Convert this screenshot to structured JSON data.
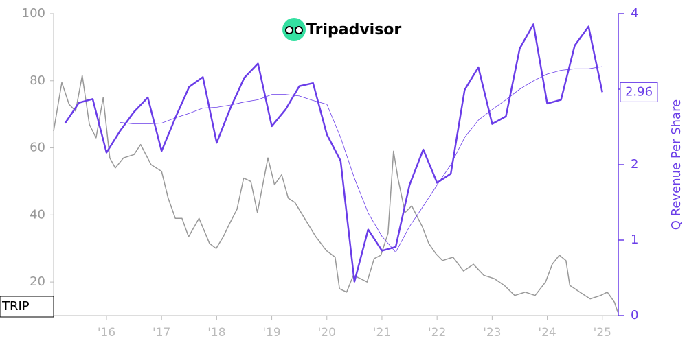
{
  "logo": "Tripadvisor",
  "chart_data": {
    "type": "line",
    "y2_label": "Q Revenue Per Share",
    "xlim": [
      2015.04,
      2025.29
    ],
    "xticks": [
      {
        "value": 2016,
        "label": "'16"
      },
      {
        "value": 2017,
        "label": "'17"
      },
      {
        "value": 2018,
        "label": "'18"
      },
      {
        "value": 2019,
        "label": "'19"
      },
      {
        "value": 2020,
        "label": "'20"
      },
      {
        "value": 2021,
        "label": "'21"
      },
      {
        "value": 2022,
        "label": "'22"
      },
      {
        "value": 2023,
        "label": "'23"
      },
      {
        "value": 2024,
        "label": "'24"
      },
      {
        "value": 2025,
        "label": "'25"
      }
    ],
    "ylim": [
      10,
      100
    ],
    "yticks": [
      20,
      40,
      60,
      80,
      100
    ],
    "y2lim": [
      0,
      4
    ],
    "y2ticks": [
      0,
      1,
      2,
      3,
      4
    ],
    "series": [
      {
        "name": "TRIP",
        "color": "#999999",
        "axis": "y",
        "width": 1.5,
        "x": [
          2015.04,
          2015.19,
          2015.32,
          2015.44,
          2015.56,
          2015.69,
          2015.81,
          2015.94,
          2016.06,
          2016.16,
          2016.31,
          2016.5,
          2016.62,
          2016.81,
          2017.0,
          2017.12,
          2017.25,
          2017.37,
          2017.49,
          2017.68,
          2017.87,
          2017.99,
          2018.12,
          2018.24,
          2018.37,
          2018.49,
          2018.62,
          2018.74,
          2018.93,
          2019.05,
          2019.18,
          2019.3,
          2019.42,
          2019.61,
          2019.8,
          2019.99,
          2020.15,
          2020.23,
          2020.36,
          2020.48,
          2020.61,
          2020.73,
          2020.86,
          2020.98,
          2021.11,
          2021.21,
          2021.29,
          2021.42,
          2021.54,
          2021.73,
          2021.85,
          2021.98,
          2022.1,
          2022.29,
          2022.48,
          2022.66,
          2022.85,
          2023.04,
          2023.22,
          2023.41,
          2023.6,
          2023.78,
          2023.97,
          2024.09,
          2024.22,
          2024.34,
          2024.41,
          2024.59,
          2024.78,
          2024.97,
          2025.09,
          2025.22,
          2025.28
        ],
        "values": [
          65,
          79.5,
          73,
          71,
          81.6,
          67,
          63,
          75,
          57,
          54,
          57,
          58,
          61,
          55,
          53,
          45,
          39,
          39,
          33.5,
          39,
          31.5,
          30,
          33.5,
          37.6,
          41.7,
          51,
          50,
          40.7,
          57,
          49,
          52,
          45,
          43.7,
          38.6,
          33.5,
          29.4,
          27.4,
          18,
          17,
          22,
          21,
          20,
          27,
          28,
          34.5,
          59,
          51,
          40.7,
          42.7,
          36.6,
          31.5,
          28.4,
          26.4,
          27.4,
          23.3,
          25.3,
          22,
          21,
          19,
          16,
          17,
          16,
          20,
          25.3,
          28,
          26.4,
          19,
          17,
          15,
          16,
          17,
          14,
          11
        ]
      },
      {
        "color": "#6a3de8",
        "axis": "y2",
        "width": 2.5,
        "x": [
          2015.25,
          2015.5,
          2015.75,
          2016.0,
          2016.25,
          2016.5,
          2016.75,
          2017.0,
          2017.25,
          2017.5,
          2017.75,
          2018.0,
          2018.25,
          2018.5,
          2018.75,
          2019.0,
          2019.25,
          2019.5,
          2019.75,
          2020.0,
          2020.25,
          2020.5,
          2020.75,
          2021.0,
          2021.25,
          2021.5,
          2021.75,
          2022.0,
          2022.25,
          2022.5,
          2022.75,
          2023.0,
          2023.25,
          2023.5,
          2023.75,
          2024.0,
          2024.25,
          2024.5,
          2024.75,
          2025.0
        ],
        "values": [
          2.55,
          2.82,
          2.87,
          2.16,
          2.45,
          2.7,
          2.89,
          2.18,
          2.62,
          3.03,
          3.16,
          2.29,
          2.75,
          3.15,
          3.34,
          2.51,
          2.73,
          3.04,
          3.08,
          2.4,
          2.05,
          0.45,
          1.14,
          0.86,
          0.91,
          1.73,
          2.2,
          1.76,
          1.88,
          2.99,
          3.29,
          2.54,
          2.64,
          3.54,
          3.86,
          2.81,
          2.86,
          3.58,
          3.83,
          2.96
        ],
        "value_labels": [
          null,
          null,
          null,
          null,
          null,
          null,
          null,
          null,
          null,
          null,
          null,
          null,
          null,
          null,
          null,
          null,
          null,
          null,
          null,
          null,
          null,
          null,
          null,
          null,
          null,
          null,
          null,
          null,
          null,
          null,
          null,
          null,
          null,
          null,
          null,
          null,
          null,
          null,
          null,
          "2.96"
        ]
      },
      {
        "color": "#6a3de8",
        "axis": "y2",
        "width": 0.8,
        "x": [
          2015.25,
          2015.5,
          2015.75,
          2016.0,
          2016.25,
          2016.5,
          2016.75,
          2017.0,
          2017.25,
          2017.5,
          2017.75,
          2018.0,
          2018.25,
          2018.5,
          2018.75,
          2019.0,
          2019.25,
          2019.5,
          2019.75,
          2020.0,
          2020.25,
          2020.5,
          2020.75,
          2021.0,
          2021.25,
          2021.5,
          2021.75,
          2022.0,
          2022.25,
          2022.5,
          2022.75,
          2023.0,
          2023.25,
          2023.5,
          2023.75,
          2024.0,
          2024.25,
          2024.5,
          2024.75,
          2025.0
        ],
        "values": [
          null,
          null,
          null,
          null,
          2.56,
          2.54,
          2.54,
          2.55,
          2.62,
          2.68,
          2.75,
          2.76,
          2.79,
          2.83,
          2.86,
          2.93,
          2.93,
          2.91,
          2.85,
          2.8,
          2.36,
          1.82,
          1.36,
          1.05,
          0.84,
          1.18,
          1.45,
          1.73,
          2.0,
          2.36,
          2.59,
          2.73,
          2.86,
          3.0,
          3.11,
          3.2,
          3.25,
          3.27,
          3.27,
          3.3
        ]
      }
    ]
  }
}
